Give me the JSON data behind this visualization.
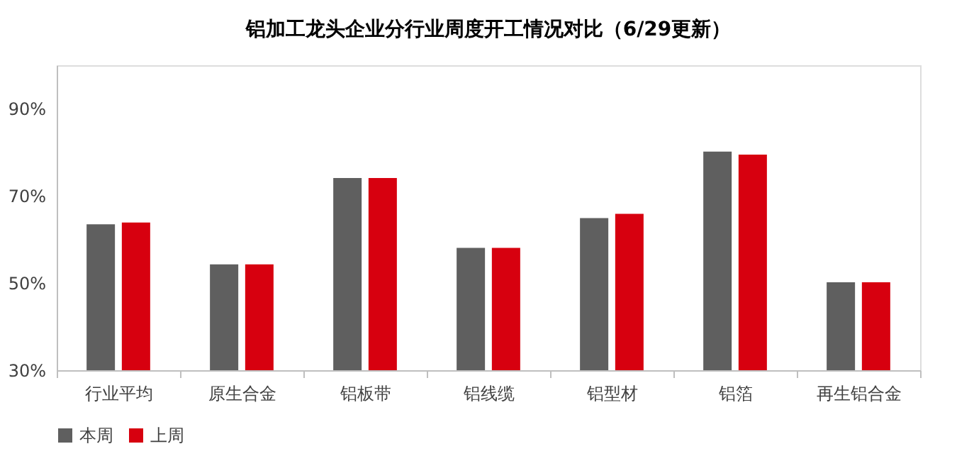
{
  "chart_data": {
    "type": "bar",
    "title": "铝加工龙头企业分行业周度开工情况对比（6/29更新）",
    "categories": [
      "行业平均",
      "原生合金",
      "铝板带",
      "铝线缆",
      "铝型材",
      "铝箔",
      "再生铝合金"
    ],
    "series": [
      {
        "name": "本周",
        "color": "#5f5f5f",
        "values": [
          63.5,
          54.3,
          74.1,
          58.1,
          64.9,
          80.2,
          50.2
        ]
      },
      {
        "name": "上周",
        "color": "#d7000f",
        "values": [
          63.9,
          54.3,
          74.1,
          58.1,
          65.9,
          79.5,
          50.2
        ]
      }
    ],
    "ylim": [
      30,
      100
    ],
    "yticks": [
      {
        "value": 30,
        "label": "30%"
      },
      {
        "value": 50,
        "label": "50%"
      },
      {
        "value": 70,
        "label": "70%"
      },
      {
        "value": 90,
        "label": "90%"
      }
    ],
    "grid": false,
    "legend": "bottom"
  }
}
